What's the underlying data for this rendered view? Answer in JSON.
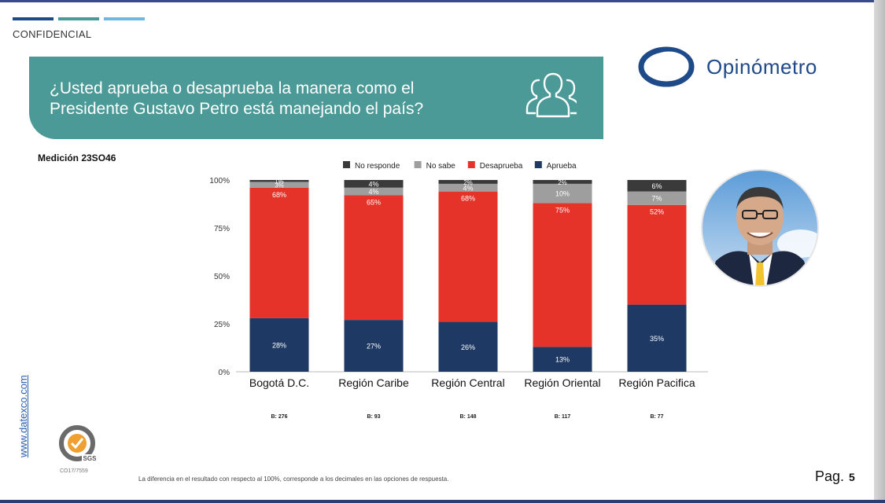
{
  "header": {
    "confidential_label": "CONFIDENCIAL",
    "title": "¿Usted aprueba o desaprueba la manera como el Presidente Gustavo Petro está manejando el país?",
    "brand_name": "Opinómetro",
    "measurement_label": "Medición 23SO46",
    "top_bar_colors": [
      "#1f4a8a",
      "#4b9a98",
      "#6bb8e0"
    ]
  },
  "chart_data": {
    "type": "bar",
    "stacked": true,
    "categories": [
      "Bogotá D.C.",
      "Región Caribe",
      "Región Central",
      "Región Oriental",
      "Región Pacifica"
    ],
    "series": [
      {
        "name": "Aprueba",
        "color": "#1e3a64",
        "values": [
          28,
          27,
          26,
          13,
          35
        ],
        "labels": [
          "28%",
          "27%",
          "26%",
          "13%",
          "35%"
        ]
      },
      {
        "name": "Desaprueba",
        "color": "#e5332a",
        "values": [
          68,
          65,
          68,
          75,
          52
        ],
        "labels": [
          "68%",
          "65%",
          "68%",
          "75%",
          "52%"
        ]
      },
      {
        "name": "No sabe",
        "color": "#9e9e9e",
        "values": [
          3,
          4,
          4,
          10,
          7
        ],
        "labels": [
          "3%",
          "4%",
          "4%",
          "10%",
          "7%"
        ]
      },
      {
        "name": "No responde",
        "color": "#3a3a3a",
        "values": [
          1,
          4,
          2,
          2,
          6
        ],
        "labels": [
          "1%",
          "4%",
          "2%",
          "2%",
          "6%"
        ]
      }
    ],
    "legend_order": [
      "No responde",
      "No sabe",
      "Desaprueba",
      "Aprueba"
    ],
    "legend_position": "top",
    "ylim": [
      0,
      100
    ],
    "yticks": [
      "0%",
      "25%",
      "50%",
      "75%",
      "100%"
    ],
    "base_labels": [
      "B: 276",
      "B: 93",
      "B: 148",
      "B: 117",
      "B: 77"
    ],
    "grid": false
  },
  "sidebar": {
    "website": "www.datexco.com",
    "cert_code": "CO17/7559",
    "cert_brand": "SGS"
  },
  "footer": {
    "note": "La diferencia en el resultado con respecto al 100%, corresponde a los decimales en las opciones de respuesta.",
    "page_label": "Pag.",
    "page_number": "5"
  }
}
